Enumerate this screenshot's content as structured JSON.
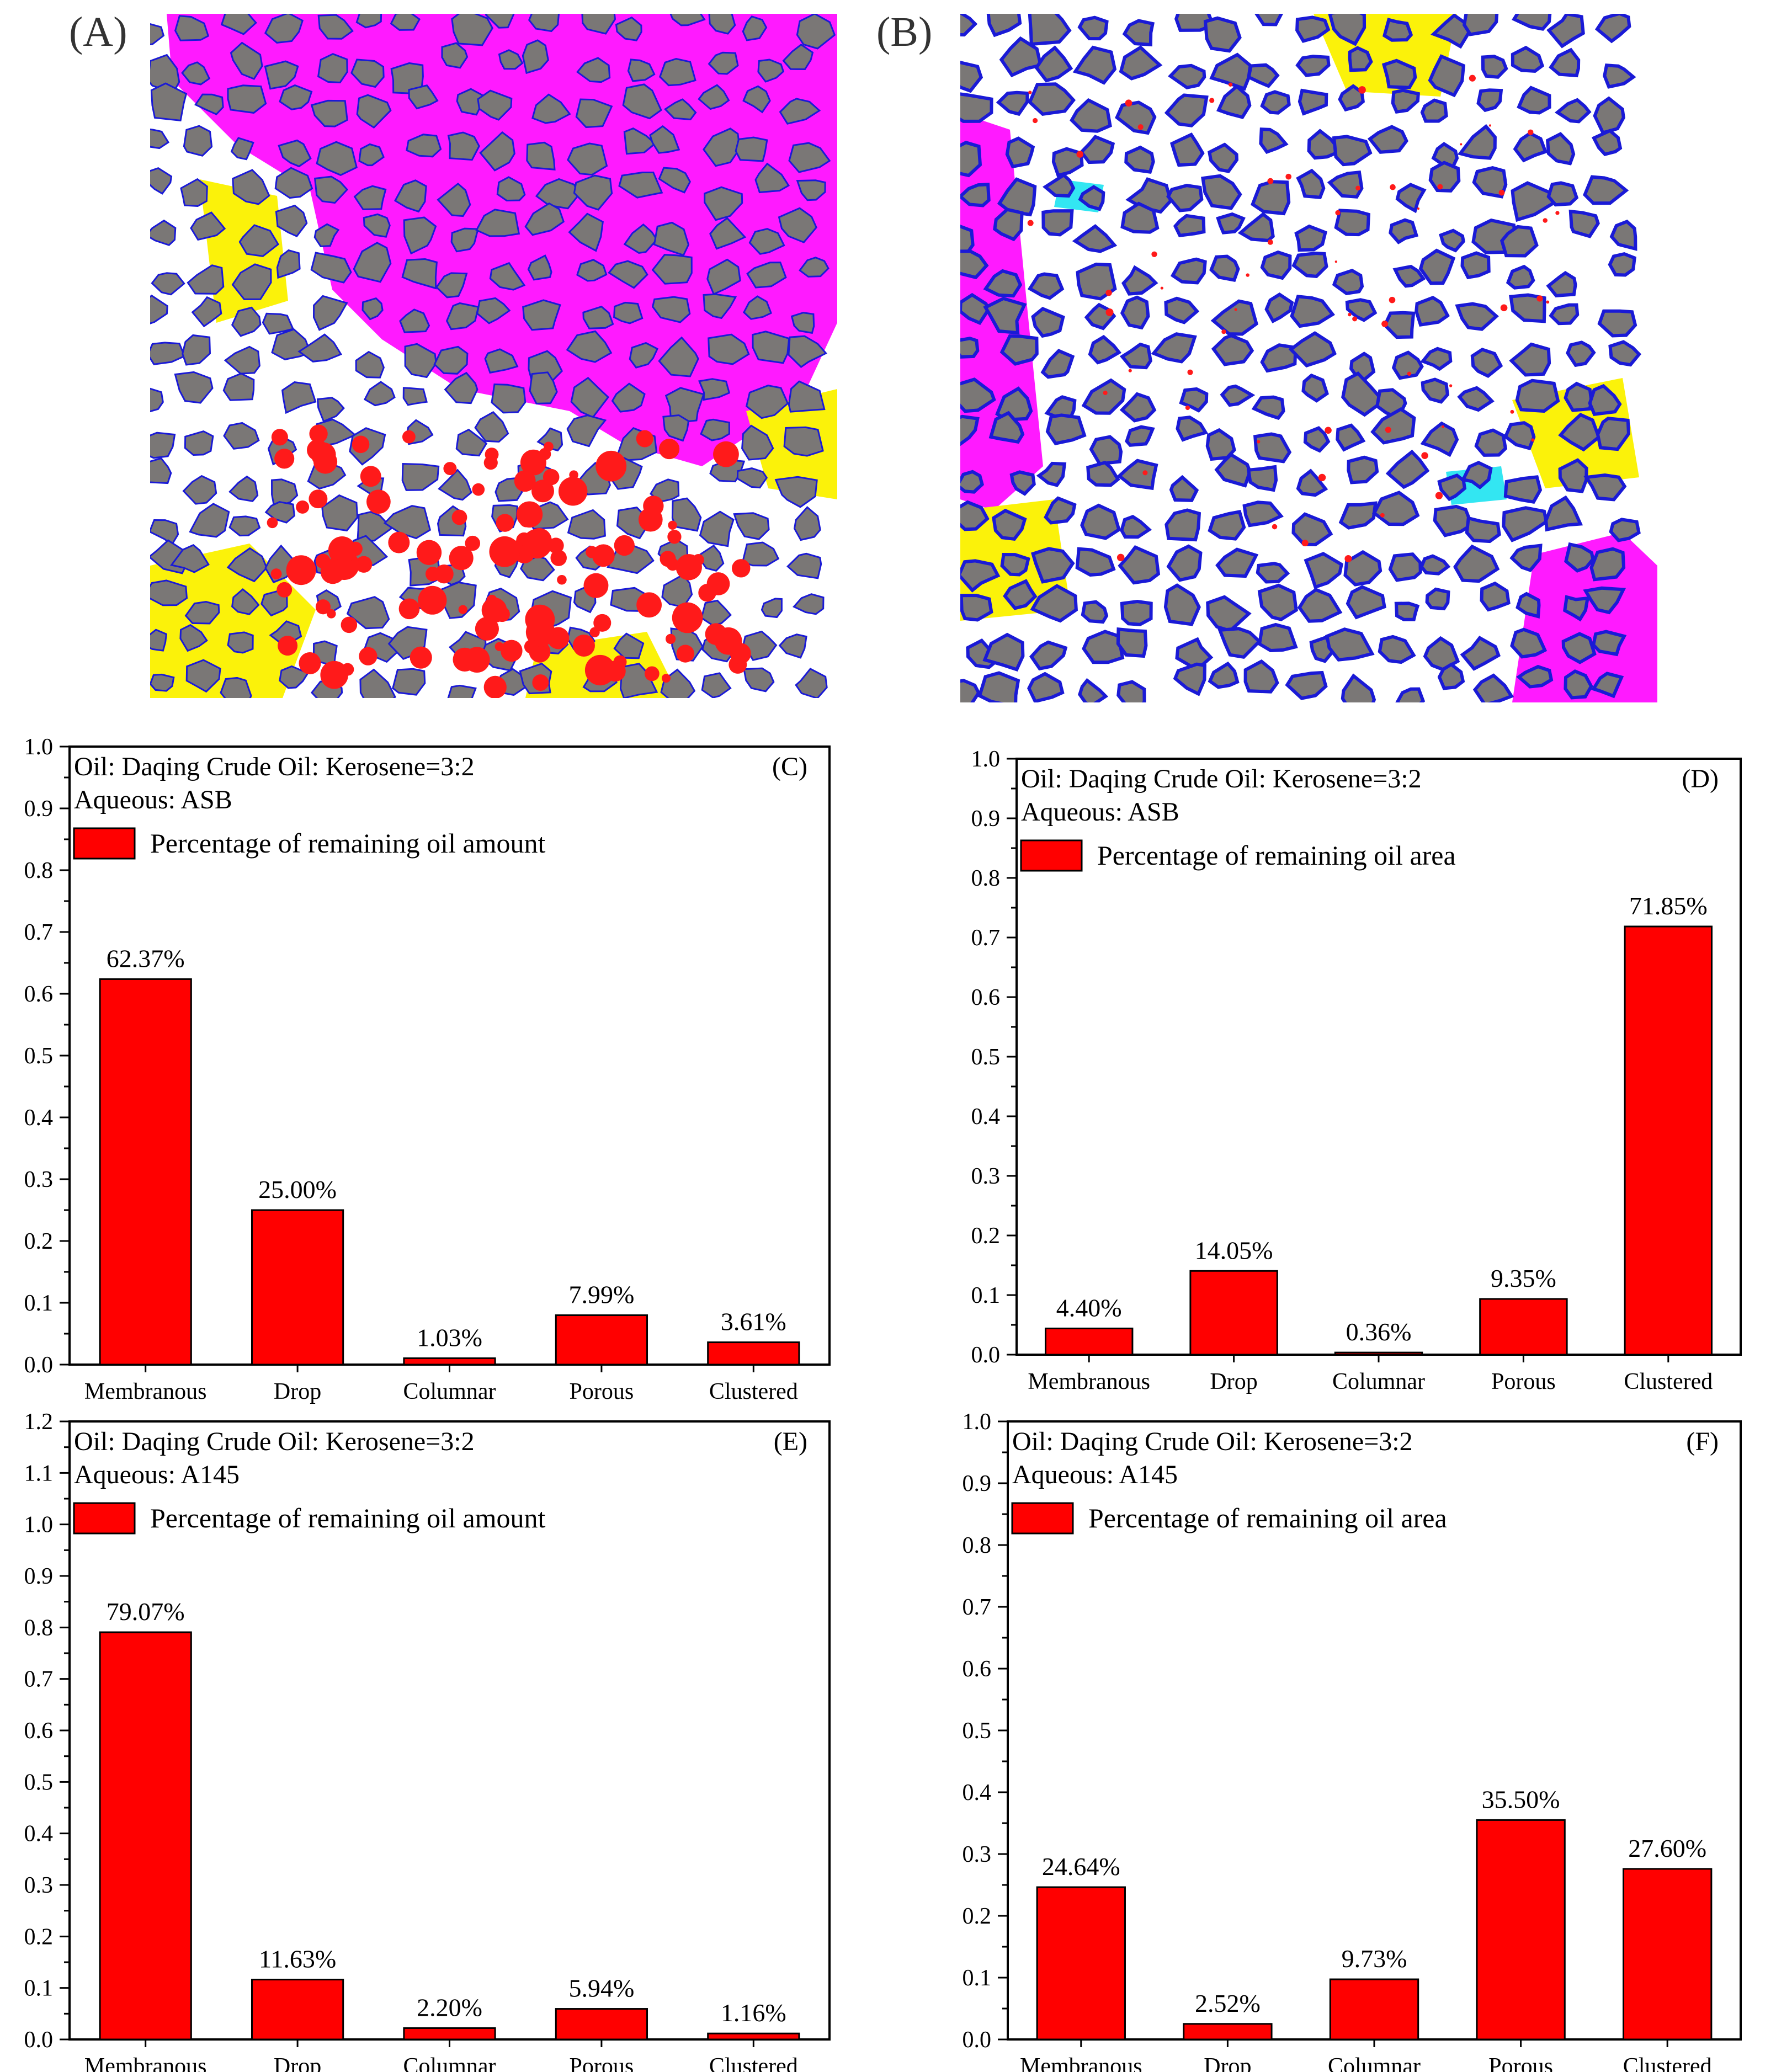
{
  "panels": [
    {
      "id": "A",
      "label": "(A)"
    },
    {
      "id": "B",
      "label": "(B)"
    }
  ],
  "legend_colors": {
    "rock": "#7a7776",
    "pore": "#ffffff",
    "membranous": "#1a1ad6",
    "drop": "#ff1a1a",
    "columnar": "#33e6f2",
    "porous": "#fbf20a",
    "clustered": "#ff1aff"
  },
  "chart_data": [
    {
      "type": "bar",
      "panel": "(C)",
      "line1": "Oil: Daqing Crude Oil: Kerosene=3:2",
      "line2": "Aqueous: ASB",
      "legend": "Percentage of remaining oil amount",
      "categories": [
        "Membranous",
        "Drop",
        "Columnar",
        "Porous",
        "Clustered"
      ],
      "values": [
        0.6237,
        0.25,
        0.0103,
        0.0799,
        0.0361
      ],
      "labels": [
        "62.37%",
        "25.00%",
        "1.03%",
        "7.99%",
        "3.61%"
      ],
      "yticks": [
        "0.0",
        "0.1",
        "0.2",
        "0.3",
        "0.4",
        "0.5",
        "0.6",
        "0.7",
        "0.8",
        "0.9",
        "1.0"
      ],
      "ylim": [
        0,
        1.0
      ],
      "color": "#ff0000"
    },
    {
      "type": "bar",
      "panel": "(D)",
      "line1": "Oil: Daqing Crude Oil: Kerosene=3:2",
      "line2": "Aqueous: ASB",
      "legend": "Percentage of remaining oil area",
      "categories": [
        "Membranous",
        "Drop",
        "Columnar",
        "Porous",
        "Clustered"
      ],
      "values": [
        0.044,
        0.1405,
        0.0036,
        0.0935,
        0.7185
      ],
      "labels": [
        "4.40%",
        "14.05%",
        "0.36%",
        "9.35%",
        "71.85%"
      ],
      "yticks": [
        "0.0",
        "0.1",
        "0.2",
        "0.3",
        "0.4",
        "0.5",
        "0.6",
        "0.7",
        "0.8",
        "0.9",
        "1.0"
      ],
      "ylim": [
        0,
        1.0
      ],
      "color": "#ff0000"
    },
    {
      "type": "bar",
      "panel": "(E)",
      "line1": "Oil: Daqing Crude Oil: Kerosene=3:2",
      "line2": "Aqueous: A145",
      "legend": "Percentage of remaining oil amount",
      "categories": [
        "Membranous",
        "Drop",
        "Columnar",
        "Porous",
        "Clustered"
      ],
      "values": [
        0.7907,
        0.1163,
        0.022,
        0.0594,
        0.0116
      ],
      "labels": [
        "79.07%",
        "11.63%",
        "2.20%",
        "5.94%",
        "1.16%"
      ],
      "yticks": [
        "0.0",
        "0.1",
        "0.2",
        "0.3",
        "0.4",
        "0.5",
        "0.6",
        "0.7",
        "0.8",
        "0.9",
        "1.0",
        "1.1",
        "1.2"
      ],
      "ylim": [
        0,
        1.2
      ],
      "color": "#ff0000"
    },
    {
      "type": "bar",
      "panel": "(F)",
      "line1": "Oil: Daqing Crude Oil: Kerosene=3:2",
      "line2": "Aqueous: A145",
      "legend": "Percentage of remaining oil area",
      "categories": [
        "Membranous",
        "Drop",
        "Columnar",
        "Porous",
        "Clustered"
      ],
      "values": [
        0.2464,
        0.0252,
        0.0973,
        0.355,
        0.276
      ],
      "labels": [
        "24.64%",
        "2.52%",
        "9.73%",
        "35.50%",
        "27.60%"
      ],
      "yticks": [
        "0.0",
        "0.1",
        "0.2",
        "0.3",
        "0.4",
        "0.5",
        "0.6",
        "0.7",
        "0.8",
        "0.9",
        "1.0"
      ],
      "ylim": [
        0,
        1.0
      ],
      "color": "#ff0000"
    }
  ]
}
